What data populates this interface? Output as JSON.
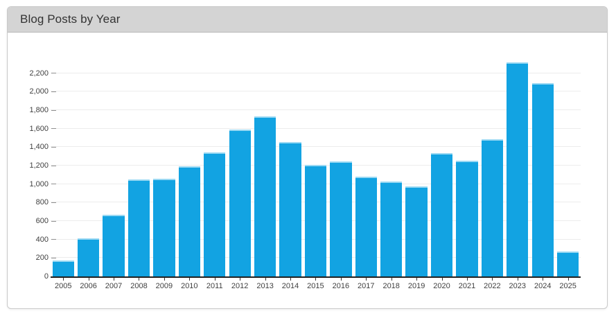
{
  "panel": {
    "title": "Blog Posts by Year"
  },
  "chart_data": {
    "type": "bar",
    "title": "Blog Posts by Year",
    "categories": [
      "2005",
      "2006",
      "2007",
      "2008",
      "2009",
      "2010",
      "2011",
      "2012",
      "2013",
      "2014",
      "2015",
      "2016",
      "2017",
      "2018",
      "2019",
      "2020",
      "2021",
      "2022",
      "2023",
      "2024",
      "2025"
    ],
    "values": [
      175,
      415,
      665,
      1050,
      1055,
      1195,
      1345,
      1590,
      1735,
      1455,
      1210,
      1245,
      1080,
      1030,
      975,
      1335,
      1250,
      1485,
      2315,
      2090,
      270
    ],
    "xlabel": "",
    "ylabel": "",
    "ylim": [
      0,
      2535
    ],
    "ytick_values": [
      0,
      200,
      400,
      600,
      800,
      1000,
      1200,
      1400,
      1600,
      1800,
      2000,
      2200
    ],
    "ytick_labels": [
      "0",
      "200",
      "400",
      "600",
      "800",
      "1,000",
      "1,200",
      "1,400",
      "1,600",
      "1,800",
      "2,000",
      "2,200"
    ],
    "grid": "horizontal",
    "legend": "none",
    "colors": {
      "bar": "#12a3e2",
      "bar_cap": "#9bd9f3",
      "grid": "#ececec",
      "axis": "#1f1f1f",
      "header_bg": "#d4d4d4"
    }
  }
}
